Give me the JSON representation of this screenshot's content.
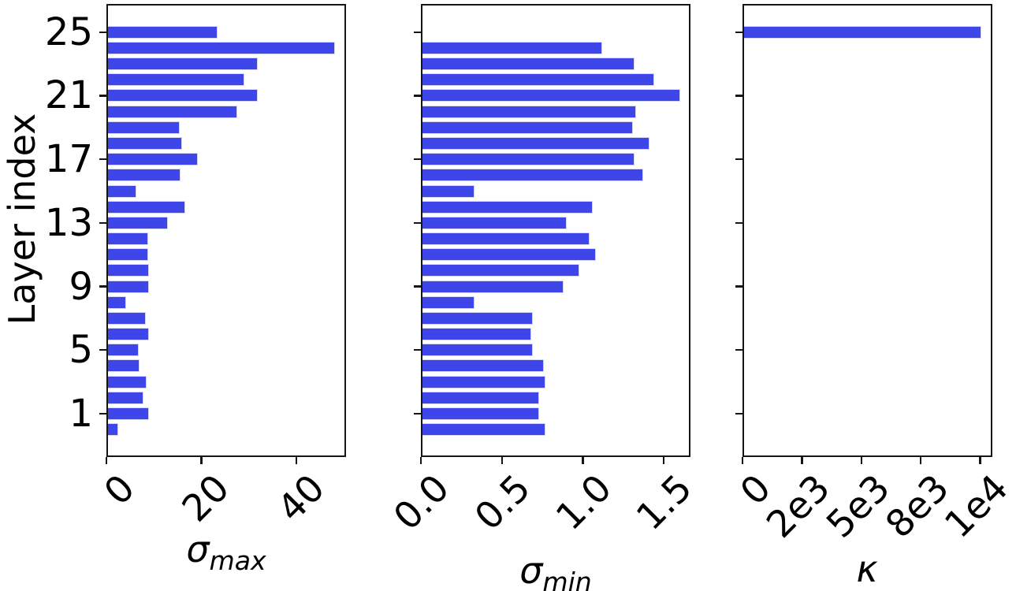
{
  "figure": {
    "ylabel": "Layer index",
    "bar_color": "#3e45e9",
    "bar_edge_color": "#d4d8f6",
    "spine_color": "#151515",
    "text_color": "#000000",
    "background": "#ffffff"
  },
  "chart_data": {
    "type": "bar",
    "orientation": "horizontal",
    "grid": false,
    "legend": false,
    "ylabel": "Layer index",
    "y_is_layer_index": true,
    "layers": [
      0,
      1,
      2,
      3,
      4,
      5,
      6,
      7,
      8,
      9,
      10,
      11,
      12,
      13,
      14,
      15,
      16,
      17,
      18,
      19,
      20,
      21,
      22,
      23,
      24,
      25
    ],
    "ylim": [
      -1.7,
      26.8
    ],
    "y_ticks": [
      25,
      21,
      17,
      13,
      9,
      5,
      1
    ],
    "panels": [
      {
        "xlabel_main": "σ",
        "xlabel_sub": "max",
        "xlim": [
          0,
          50.5
        ],
        "xticks": [
          {
            "v": 0,
            "label": "0"
          },
          {
            "v": 20,
            "label": "20"
          },
          {
            "v": 40,
            "label": "40"
          }
        ],
        "values": [
          2.2,
          8.7,
          7.5,
          8.2,
          6.7,
          6.4,
          8.6,
          8.0,
          3.9,
          8.6,
          8.7,
          8.5,
          8.5,
          12.7,
          16.3,
          6.0,
          15.2,
          19.0,
          15.6,
          15.1,
          27.3,
          31.6,
          28.7,
          31.5,
          47.8,
          23.1
        ]
      },
      {
        "xlabel_main": "σ",
        "xlabel_sub": "min",
        "xlim": [
          0,
          1.664
        ],
        "xticks": [
          {
            "v": 0,
            "label": "0.0"
          },
          {
            "v": 0.5,
            "label": "0.5"
          },
          {
            "v": 1.0,
            "label": "1.0"
          },
          {
            "v": 1.5,
            "label": "1.5"
          }
        ],
        "values": [
          0.76,
          0.72,
          0.72,
          0.76,
          0.75,
          0.68,
          0.67,
          0.68,
          0.32,
          0.87,
          0.97,
          1.07,
          1.03,
          0.89,
          1.05,
          0.32,
          1.36,
          1.31,
          1.4,
          1.3,
          1.32,
          1.59,
          1.43,
          1.31,
          1.11,
          0.0
        ]
      },
      {
        "xlabel_main": "κ",
        "xlabel_sub": "",
        "xlim": [
          0,
          10517
        ],
        "xticks": [
          {
            "v": 0,
            "label": "0"
          },
          {
            "v": 2500,
            "label": "2e3"
          },
          {
            "v": 5000,
            "label": "5e3"
          },
          {
            "v": 7500,
            "label": "8e3"
          },
          {
            "v": 10000,
            "label": "1e4"
          }
        ],
        "values": [
          0,
          0,
          0,
          0,
          0,
          0,
          0,
          0,
          0,
          0,
          0,
          0,
          0,
          0,
          0,
          0,
          0,
          0,
          0,
          0,
          0,
          0,
          0,
          0,
          0,
          10000
        ]
      }
    ]
  }
}
